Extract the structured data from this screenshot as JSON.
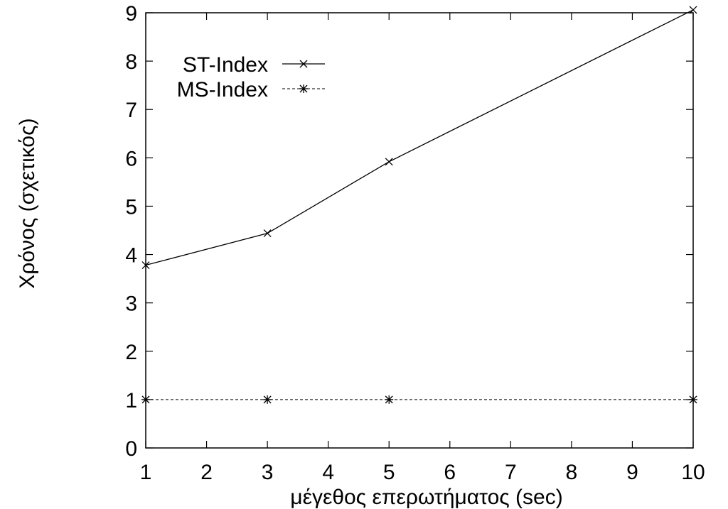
{
  "chart_data": {
    "type": "line",
    "title": "",
    "xlabel": "μέγεθος επερωτήματος (sec)",
    "ylabel": "Χρόνος (σχετικός)",
    "xlim": [
      1,
      10
    ],
    "ylim": [
      0,
      9
    ],
    "xticks": [
      1,
      2,
      3,
      4,
      5,
      6,
      7,
      8,
      9,
      10
    ],
    "yticks": [
      0,
      1,
      2,
      3,
      4,
      5,
      6,
      7,
      8,
      9
    ],
    "grid": false,
    "legend_position": "top-left",
    "series": [
      {
        "name": "ST-Index",
        "marker": "x",
        "line_style": "solid",
        "color": "#000000",
        "points": [
          {
            "x": 1,
            "y": 3.78
          },
          {
            "x": 3,
            "y": 4.44
          },
          {
            "x": 5,
            "y": 5.92
          },
          {
            "x": 10,
            "y": 9.06
          }
        ]
      },
      {
        "name": "MS-Index",
        "marker": "star",
        "line_style": "dashed",
        "color": "#000000",
        "points": [
          {
            "x": 1,
            "y": 1.0
          },
          {
            "x": 3,
            "y": 1.0
          },
          {
            "x": 5,
            "y": 1.0
          },
          {
            "x": 10,
            "y": 1.0
          }
        ]
      }
    ]
  }
}
